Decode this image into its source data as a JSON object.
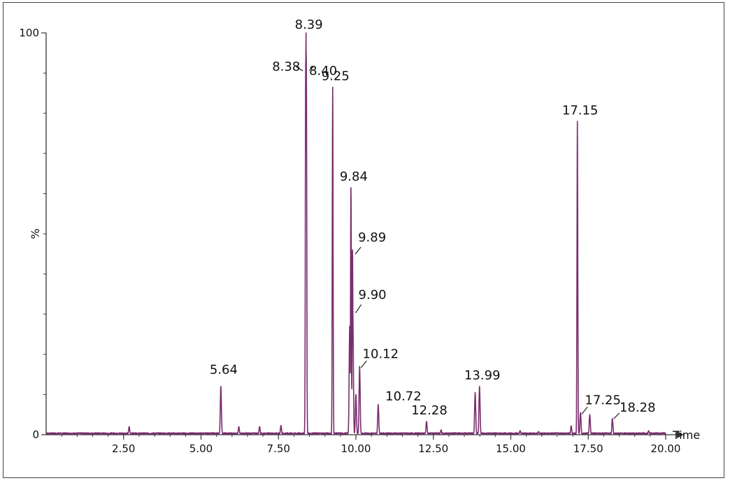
{
  "chart_data": {
    "type": "line",
    "xlabel": "Time",
    "ylabel": "%",
    "xlim": [
      0,
      20
    ],
    "ylim": [
      0,
      100
    ],
    "x_ticks": [
      "2.50",
      "5.00",
      "7.50",
      "10.00",
      "12.50",
      "15.00",
      "17.50",
      "20.00"
    ],
    "y_ticks": [
      "0",
      "100"
    ],
    "line_color": "#7a2d6e",
    "peaks": [
      {
        "x": 2.68,
        "y": 2
      },
      {
        "x": 5.64,
        "y": 12
      },
      {
        "x": 6.22,
        "y": 2
      },
      {
        "x": 6.89,
        "y": 2
      },
      {
        "x": 7.58,
        "y": 2.3
      },
      {
        "x": 8.38,
        "y": 93
      },
      {
        "x": 8.39,
        "y": 100
      },
      {
        "x": 8.4,
        "y": 93
      },
      {
        "x": 9.25,
        "y": 86.5
      },
      {
        "x": 9.84,
        "y": 61.5
      },
      {
        "x": 9.89,
        "y": 46
      },
      {
        "x": 9.9,
        "y": 31
      },
      {
        "x": 9.8,
        "y": 27
      },
      {
        "x": 10.0,
        "y": 10
      },
      {
        "x": 10.12,
        "y": 17
      },
      {
        "x": 10.72,
        "y": 7.5
      },
      {
        "x": 12.28,
        "y": 3.3
      },
      {
        "x": 12.75,
        "y": 1.2
      },
      {
        "x": 13.85,
        "y": 10.5
      },
      {
        "x": 13.99,
        "y": 12
      },
      {
        "x": 15.3,
        "y": 1
      },
      {
        "x": 15.9,
        "y": 0.8
      },
      {
        "x": 16.95,
        "y": 2.2
      },
      {
        "x": 17.15,
        "y": 78
      },
      {
        "x": 17.25,
        "y": 5.5
      },
      {
        "x": 17.55,
        "y": 5
      },
      {
        "x": 18.28,
        "y": 4
      },
      {
        "x": 19.45,
        "y": 1
      }
    ],
    "annotations": [
      {
        "text": "5.64",
        "x": 5.64
      },
      {
        "text": "8.38",
        "x": 8.38
      },
      {
        "text": "8.39",
        "x": 8.39
      },
      {
        "text": "8.40",
        "x": 8.4
      },
      {
        "text": "9.25",
        "x": 9.25
      },
      {
        "text": "9.84",
        "x": 9.84
      },
      {
        "text": "9.89",
        "x": 9.89
      },
      {
        "text": "9.90",
        "x": 9.9
      },
      {
        "text": "10.12",
        "x": 10.12
      },
      {
        "text": "10.72",
        "x": 10.72
      },
      {
        "text": "12.28",
        "x": 12.28
      },
      {
        "text": "13.99",
        "x": 13.99
      },
      {
        "text": "17.15",
        "x": 17.15
      },
      {
        "text": "17.25",
        "x": 17.25
      },
      {
        "text": "18.28",
        "x": 18.28
      }
    ]
  }
}
